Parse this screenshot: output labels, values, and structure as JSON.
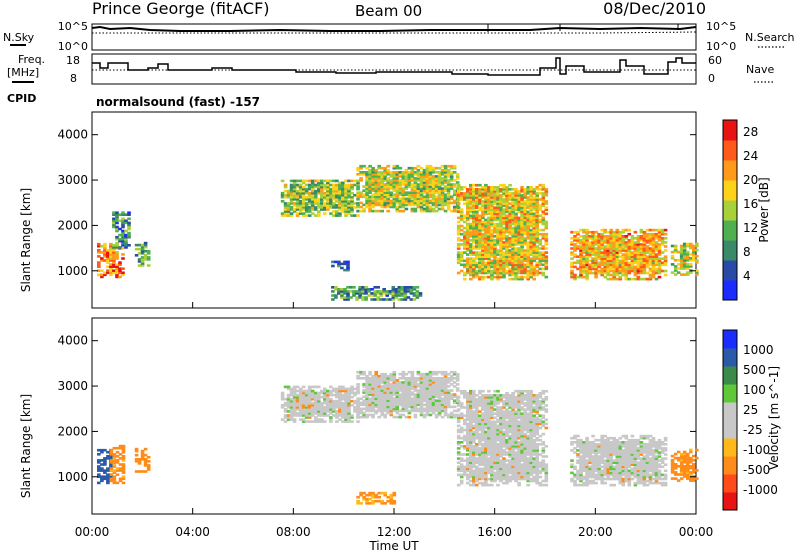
{
  "header": {
    "station": "Prince George (fitACF)",
    "beam": "Beam 00",
    "date": "08/Dec/2010"
  },
  "noise_panel": {
    "left_label": "N.Sky",
    "right_label": "N.Search",
    "left_ticks": [
      "10^5",
      "10^0"
    ],
    "right_ticks": [
      "10^5",
      "10^0"
    ]
  },
  "freq_panel": {
    "left_label_1": "Freq.",
    "left_label_2": "[MHz]",
    "right_label": "Nave",
    "left_ticks": [
      "18",
      "8"
    ],
    "right_ticks": [
      "60",
      "0"
    ]
  },
  "cpid": {
    "label": "CPID",
    "value": "normalsound (fast) -157"
  },
  "colors": {
    "power_scale": [
      "#1a2cff",
      "#2a4aa8",
      "#3a8a6a",
      "#4fb04f",
      "#a8d03a",
      "#ffd21a",
      "#ff9a1a",
      "#ff5a1a",
      "#e81414"
    ],
    "velocity_scale": [
      "#e81414",
      "#ff4a1a",
      "#ff8c1a",
      "#ffb81a",
      "#c8c8c8",
      "#c8c8c8",
      "#5fc83a",
      "#3a8a4a",
      "#2a5aa8",
      "#1a2cff"
    ],
    "ground_scatter": "#c8c8c8"
  },
  "chart_data": [
    {
      "type": "heatmap",
      "title": "",
      "xlabel": "Time UT",
      "ylabel": "Slant Range [km]",
      "xlim": [
        "00:00",
        "24:00"
      ],
      "ylim": [
        180,
        4500
      ],
      "x_ticks": [
        "00:00",
        "04:00",
        "08:00",
        "12:00",
        "16:00",
        "20:00",
        "00:00"
      ],
      "y_ticks": [
        "1000",
        "2000",
        "3000",
        "4000"
      ],
      "colorbar_label": "Power [dB]",
      "colorbar_ticks": [
        "4",
        "8",
        "12",
        "16",
        "20",
        "24",
        "28"
      ],
      "colorbar_range": [
        0,
        30
      ],
      "regions": [
        {
          "t0": 0.2,
          "t1": 1.2,
          "r0": 850,
          "r1": 1600,
          "level": 22
        },
        {
          "t0": 0.8,
          "t1": 1.5,
          "r0": 1500,
          "r1": 2300,
          "level": 8
        },
        {
          "t0": 1.7,
          "t1": 2.3,
          "r0": 1100,
          "r1": 1600,
          "level": 10
        },
        {
          "t0": 7.5,
          "t1": 10.5,
          "r0": 2200,
          "r1": 3000,
          "level": 14
        },
        {
          "t0": 10.5,
          "t1": 14.5,
          "r0": 2300,
          "r1": 3300,
          "level": 16
        },
        {
          "t0": 14.5,
          "t1": 18.0,
          "r0": 800,
          "r1": 2900,
          "level": 18
        },
        {
          "t0": 19.0,
          "t1": 22.8,
          "r0": 800,
          "r1": 1900,
          "level": 20
        },
        {
          "t0": 23.0,
          "t1": 24.0,
          "r0": 900,
          "r1": 1600,
          "level": 16
        },
        {
          "t0": 9.5,
          "t1": 10.2,
          "r0": 1000,
          "r1": 1200,
          "level": 6
        },
        {
          "t0": 9.5,
          "t1": 13.0,
          "r0": 350,
          "r1": 650,
          "level": 10
        }
      ]
    },
    {
      "type": "heatmap",
      "title": "",
      "xlabel": "Time UT",
      "ylabel": "Slant Range [km]",
      "xlim": [
        "00:00",
        "24:00"
      ],
      "ylim": [
        180,
        4500
      ],
      "x_ticks": [
        "00:00",
        "04:00",
        "08:00",
        "12:00",
        "16:00",
        "20:00",
        "00:00"
      ],
      "y_ticks": [
        "1000",
        "2000",
        "3000",
        "4000"
      ],
      "colorbar_label": "Velocity [m s^-1]",
      "colorbar_ticks": [
        "1000",
        "500",
        "100",
        "25",
        "-25",
        "-100",
        "-500",
        "-1000"
      ],
      "regions": [
        {
          "t0": 0.2,
          "t1": 0.7,
          "r0": 850,
          "r1": 1600,
          "velocity": 300
        },
        {
          "t0": 0.7,
          "t1": 1.2,
          "r0": 850,
          "r1": 1700,
          "velocity": -150
        },
        {
          "t0": 1.7,
          "t1": 2.3,
          "r0": 1100,
          "r1": 1600,
          "velocity": -200
        },
        {
          "t0": 7.5,
          "t1": 10.5,
          "r0": 2200,
          "r1": 3000,
          "velocity": 0
        },
        {
          "t0": 10.5,
          "t1": 14.5,
          "r0": 2300,
          "r1": 3300,
          "velocity": 0
        },
        {
          "t0": 14.5,
          "t1": 18.0,
          "r0": 800,
          "r1": 2900,
          "velocity": 0
        },
        {
          "t0": 19.0,
          "t1": 22.8,
          "r0": 800,
          "r1": 1900,
          "velocity": 0
        },
        {
          "t0": 23.0,
          "t1": 24.0,
          "r0": 900,
          "r1": 1600,
          "velocity": -150
        },
        {
          "t0": 10.5,
          "t1": 12.0,
          "r0": 400,
          "r1": 650,
          "velocity": -120
        }
      ]
    }
  ]
}
